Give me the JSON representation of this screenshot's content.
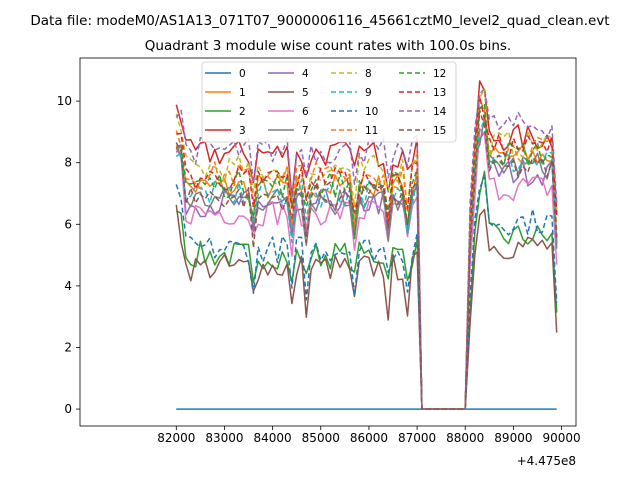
{
  "chart_data": {
    "type": "line",
    "suptitle": "Data file: modeM0/AS1A13_071T07_9000006116_45661cztM0_level2_quad_clean.evt",
    "title": "Quadrant 3 module wise count rates with 100.0s bins.",
    "xlabel": "",
    "ylabel": "",
    "x_offset_label": "+4.475e8",
    "xlim": [
      80000,
      90300
    ],
    "ylim": [
      -0.55,
      11.4
    ],
    "x_ticks": [
      82000,
      83000,
      84000,
      85000,
      86000,
      87000,
      88000,
      89000,
      90000
    ],
    "x_tick_labels": [
      "82000",
      "83000",
      "84000",
      "85000",
      "86000",
      "87000",
      "88000",
      "89000",
      "90000"
    ],
    "y_ticks": [
      0,
      2,
      4,
      6,
      8,
      10
    ],
    "y_tick_labels": [
      "0",
      "2",
      "4",
      "6",
      "8",
      "10"
    ],
    "grid": false,
    "legend_position": "upper-center",
    "legend_columns": 4,
    "x_start": 82000,
    "x_step": 100,
    "gap_start": 87100,
    "gap_end": 88000,
    "series": [
      {
        "name": "0",
        "color": "#1f77b4",
        "dashed": false,
        "level1": 0.0,
        "level2": 0.0
      },
      {
        "name": "1",
        "color": "#ff7f0e",
        "dashed": false,
        "level1": 7.2,
        "level2": 8.2
      },
      {
        "name": "2",
        "color": "#2ca02c",
        "dashed": false,
        "level1": 5.0,
        "level2": 5.6
      },
      {
        "name": "3",
        "color": "#d62728",
        "dashed": false,
        "level1": 8.3,
        "level2": 8.8
      },
      {
        "name": "4",
        "color": "#9467bd",
        "dashed": false,
        "level1": 6.7,
        "level2": 7.7
      },
      {
        "name": "5",
        "color": "#8c564b",
        "dashed": false,
        "level1": 4.6,
        "level2": 5.3
      },
      {
        "name": "6",
        "color": "#e377c2",
        "dashed": false,
        "level1": 6.4,
        "level2": 7.2
      },
      {
        "name": "7",
        "color": "#7f7f7f",
        "dashed": false,
        "level1": 6.8,
        "level2": 7.9
      },
      {
        "name": "8",
        "color": "#bcbd22",
        "dashed": true,
        "level1": 7.8,
        "level2": 8.6
      },
      {
        "name": "9",
        "color": "#17becf",
        "dashed": true,
        "level1": 7.0,
        "level2": 8.0
      },
      {
        "name": "10",
        "color": "#1f77b4",
        "dashed": true,
        "level1": 5.2,
        "level2": 6.1
      },
      {
        "name": "11",
        "color": "#ff7f0e",
        "dashed": true,
        "level1": 7.6,
        "level2": 8.4
      },
      {
        "name": "12",
        "color": "#2ca02c",
        "dashed": true,
        "level1": 7.3,
        "level2": 8.3
      },
      {
        "name": "13",
        "color": "#d62728",
        "dashed": true,
        "level1": 7.5,
        "level2": 8.5
      },
      {
        "name": "14",
        "color": "#9467bd",
        "dashed": true,
        "level1": 8.4,
        "level2": 9.2
      },
      {
        "name": "15",
        "color": "#8c564b",
        "dashed": true,
        "level1": 6.9,
        "level2": 7.8
      }
    ]
  }
}
